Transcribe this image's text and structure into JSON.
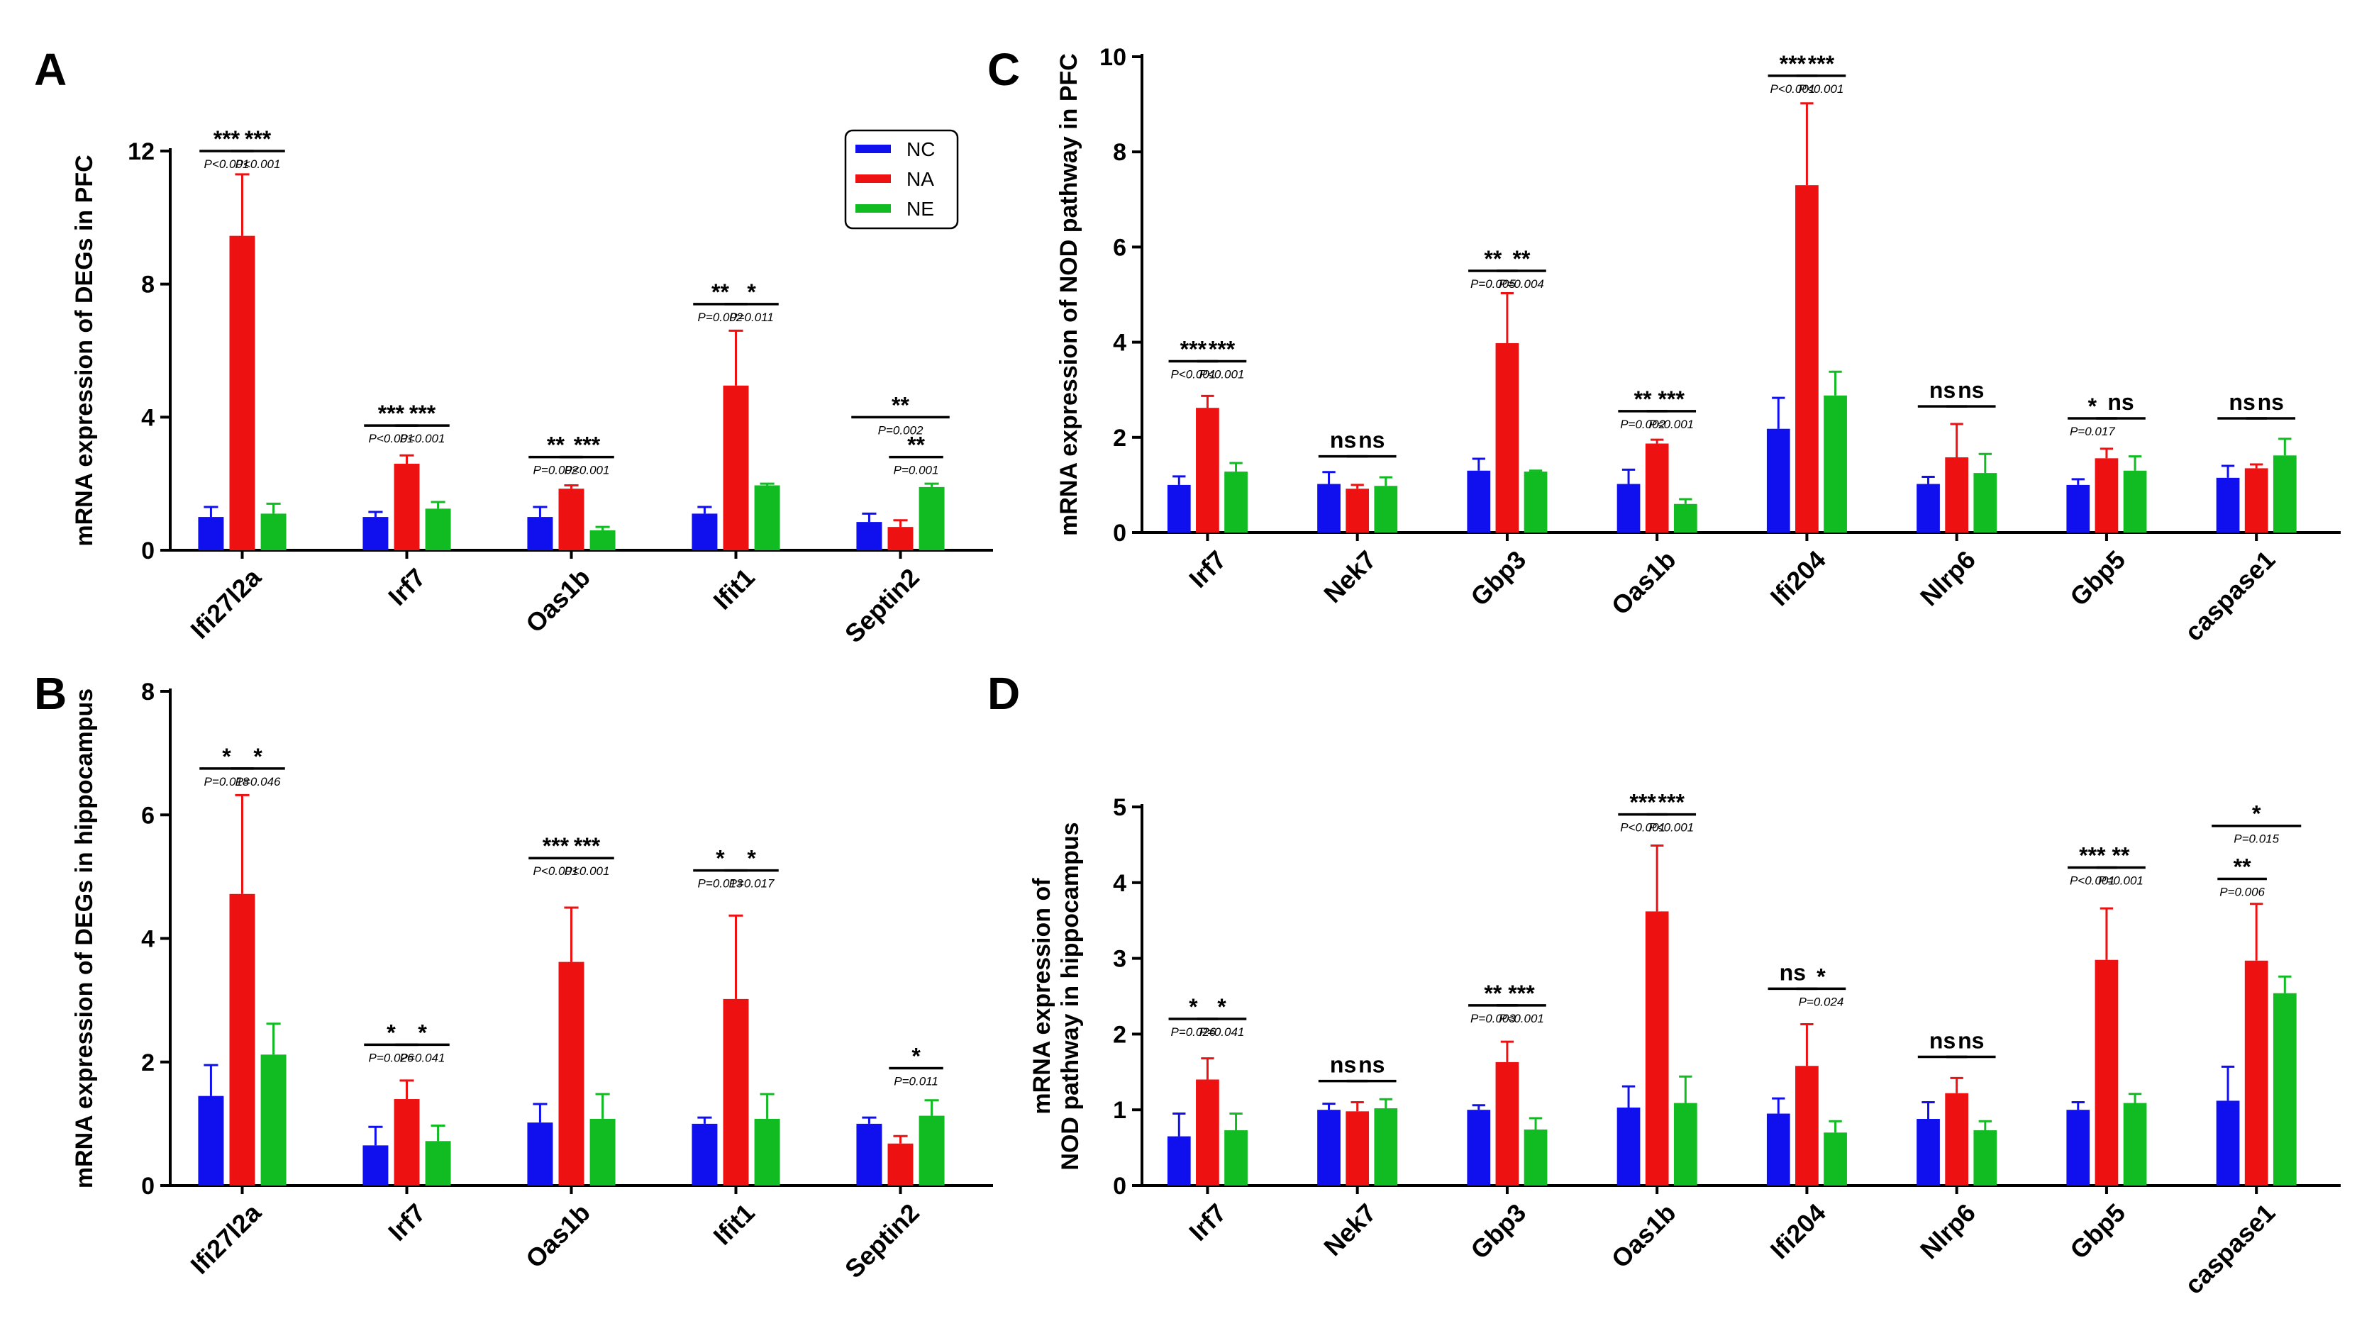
{
  "colors": {
    "NC": "#1010ee",
    "NA": "#ee1111",
    "NE": "#11bb22"
  },
  "chart_data": [
    {
      "id": "A",
      "type": "bar",
      "panel_label": "A",
      "ylabel": "mRNA expression of DEGs in PFC",
      "ylim": [
        0,
        12
      ],
      "yticks": [
        "0",
        "4",
        "8",
        "12"
      ],
      "categories": [
        "Ifi27l2a",
        "Irf7",
        "Oas1b",
        "Ifit1",
        "Septin2"
      ],
      "legend": {
        "position": "top-right",
        "entries": [
          "NC",
          "NA",
          "NE"
        ]
      },
      "series": [
        {
          "name": "NC",
          "values": [
            1.0,
            1.0,
            1.0,
            1.1,
            0.85
          ],
          "errors": [
            0.3,
            0.15,
            0.3,
            0.2,
            0.25
          ]
        },
        {
          "name": "NA",
          "values": [
            9.45,
            2.6,
            1.85,
            4.95,
            0.7
          ],
          "errors": [
            1.85,
            0.25,
            0.1,
            1.65,
            0.2
          ]
        },
        {
          "name": "NE",
          "values": [
            1.1,
            1.25,
            0.6,
            1.95,
            1.9
          ],
          "errors": [
            0.3,
            0.2,
            0.1,
            0.05,
            0.1
          ]
        }
      ],
      "comparisons": [
        {
          "cat": 0,
          "pair": "NC-NA",
          "stars": "***",
          "p": "P<0.001",
          "y": 12.0
        },
        {
          "cat": 0,
          "pair": "NA-NE",
          "stars": "***",
          "p": "P<0.001",
          "y": 12.0
        },
        {
          "cat": 1,
          "pair": "NC-NA",
          "stars": "***",
          "p": "P<0.001",
          "y": 3.75
        },
        {
          "cat": 1,
          "pair": "NA-NE",
          "stars": "***",
          "p": "P<0.001",
          "y": 3.75
        },
        {
          "cat": 2,
          "pair": "NC-NA",
          "stars": "**",
          "p": "P=0.002",
          "y": 2.8
        },
        {
          "cat": 2,
          "pair": "NA-NE",
          "stars": "***",
          "p": "P<0.001",
          "y": 2.8
        },
        {
          "cat": 3,
          "pair": "NC-NA",
          "stars": "**",
          "p": "P=0.002",
          "y": 7.4
        },
        {
          "cat": 3,
          "pair": "NA-NE",
          "stars": "*",
          "p": "P=0.011",
          "y": 7.4
        },
        {
          "cat": 4,
          "pair": "NC-NE",
          "stars": "**",
          "p": "P=0.002",
          "y": 4.0
        },
        {
          "cat": 4,
          "pair": "NA-NE",
          "stars": "**",
          "p": "P=0.001",
          "y": 2.8
        }
      ]
    },
    {
      "id": "B",
      "type": "bar",
      "panel_label": "B",
      "ylabel": "mRNA expression of DEGs in hippocampus",
      "ylim": [
        0,
        8
      ],
      "yticks": [
        "0",
        "2",
        "4",
        "6",
        "8"
      ],
      "categories": [
        "Ifi27l2a",
        "Irf7",
        "Oas1b",
        "Ifit1",
        "Septin2"
      ],
      "series": [
        {
          "name": "NC",
          "values": [
            1.45,
            0.65,
            1.02,
            1.0,
            1.0
          ],
          "errors": [
            0.5,
            0.3,
            0.3,
            0.1,
            0.1
          ]
        },
        {
          "name": "NA",
          "values": [
            4.72,
            1.4,
            3.62,
            3.02,
            0.68
          ],
          "errors": [
            1.6,
            0.3,
            0.88,
            1.35,
            0.12
          ]
        },
        {
          "name": "NE",
          "values": [
            2.12,
            0.72,
            1.08,
            1.08,
            1.13
          ],
          "errors": [
            0.5,
            0.25,
            0.4,
            0.4,
            0.25
          ]
        }
      ],
      "comparisons": [
        {
          "cat": 0,
          "pair": "NC-NA",
          "stars": "*",
          "p": "P=0.018",
          "y": 6.75
        },
        {
          "cat": 0,
          "pair": "NA-NE",
          "stars": "*",
          "p": "P=0.046",
          "y": 6.75
        },
        {
          "cat": 1,
          "pair": "NC-NA",
          "stars": "*",
          "p": "P=0.026",
          "y": 2.28
        },
        {
          "cat": 1,
          "pair": "NA-NE",
          "stars": "*",
          "p": "P=0.041",
          "y": 2.28
        },
        {
          "cat": 2,
          "pair": "NC-NA",
          "stars": "***",
          "p": "P<0.001",
          "y": 5.3
        },
        {
          "cat": 2,
          "pair": "NA-NE",
          "stars": "***",
          "p": "P<0.001",
          "y": 5.3
        },
        {
          "cat": 3,
          "pair": "NC-NA",
          "stars": "*",
          "p": "P=0.013",
          "y": 5.1
        },
        {
          "cat": 3,
          "pair": "NA-NE",
          "stars": "*",
          "p": "P=0.017",
          "y": 5.1
        },
        {
          "cat": 4,
          "pair": "NA-NE",
          "stars": "*",
          "p": "P=0.011",
          "y": 1.9
        }
      ]
    },
    {
      "id": "C",
      "type": "bar",
      "panel_label": "C",
      "ylabel": "mRNA expression of NOD pathway in PFC",
      "ylim": [
        0,
        10
      ],
      "yticks": [
        "0",
        "2",
        "4",
        "6",
        "8",
        "10"
      ],
      "categories": [
        "Irf7",
        "Nek7",
        "Gbp3",
        "Oas1b",
        "Ifi204",
        "Nlrp6",
        "Gbp5",
        "caspase1"
      ],
      "series": [
        {
          "name": "NC",
          "values": [
            1.0,
            1.02,
            1.3,
            1.02,
            2.18,
            1.02,
            1.0,
            1.15
          ],
          "errors": [
            0.18,
            0.25,
            0.25,
            0.3,
            0.65,
            0.15,
            0.12,
            0.25
          ]
        },
        {
          "name": "NA",
          "values": [
            2.62,
            0.92,
            3.98,
            1.87,
            7.3,
            1.58,
            1.56,
            1.35
          ],
          "errors": [
            0.25,
            0.08,
            1.05,
            0.08,
            1.72,
            0.7,
            0.2,
            0.08
          ]
        },
        {
          "name": "NE",
          "values": [
            1.28,
            0.98,
            1.28,
            0.6,
            2.88,
            1.25,
            1.3,
            1.62
          ],
          "errors": [
            0.18,
            0.18,
            0.02,
            0.1,
            0.5,
            0.4,
            0.3,
            0.35
          ]
        }
      ],
      "comparisons": [
        {
          "cat": 0,
          "pair": "NC-NA",
          "stars": "***",
          "p": "P<0.001",
          "y": 3.6
        },
        {
          "cat": 0,
          "pair": "NA-NE",
          "stars": "***",
          "p": "P<0.001",
          "y": 3.6
        },
        {
          "cat": 1,
          "pair": "NC-NA",
          "stars": "ns",
          "p": "",
          "y": 1.6
        },
        {
          "cat": 1,
          "pair": "NA-NE",
          "stars": "ns",
          "p": "",
          "y": 1.6
        },
        {
          "cat": 2,
          "pair": "NC-NA",
          "stars": "**",
          "p": "P=0.005",
          "y": 5.5
        },
        {
          "cat": 2,
          "pair": "NA-NE",
          "stars": "**",
          "p": "P=0.004",
          "y": 5.5
        },
        {
          "cat": 3,
          "pair": "NC-NA",
          "stars": "**",
          "p": "P=0.002",
          "y": 2.55
        },
        {
          "cat": 3,
          "pair": "NA-NE",
          "stars": "***",
          "p": "P<0.001",
          "y": 2.55
        },
        {
          "cat": 4,
          "pair": "NC-NA",
          "stars": "***",
          "p": "P<0.001",
          "y": 9.6
        },
        {
          "cat": 4,
          "pair": "NA-NE",
          "stars": "***",
          "p": "P<0.001",
          "y": 9.6
        },
        {
          "cat": 5,
          "pair": "NC-NA",
          "stars": "ns",
          "p": "",
          "y": 2.65
        },
        {
          "cat": 5,
          "pair": "NA-NE",
          "stars": "ns",
          "p": "",
          "y": 2.65
        },
        {
          "cat": 6,
          "pair": "NC-NA",
          "stars": "*",
          "p": "P=0.017",
          "y": 2.4
        },
        {
          "cat": 6,
          "pair": "NA-NE",
          "stars": "ns",
          "p": "",
          "y": 2.4
        },
        {
          "cat": 7,
          "pair": "NC-NA",
          "stars": "ns",
          "p": "",
          "y": 2.4
        },
        {
          "cat": 7,
          "pair": "NA-NE",
          "stars": "ns",
          "p": "",
          "y": 2.4
        }
      ]
    },
    {
      "id": "D",
      "type": "bar",
      "panel_label": "D",
      "ylabel_lines": [
        "mRNA expression of",
        "NOD pathway in hippocampus"
      ],
      "ylim": [
        0,
        5
      ],
      "yticks": [
        "0",
        "1",
        "2",
        "3",
        "4",
        "5"
      ],
      "categories": [
        "Irf7",
        "Nek7",
        "Gbp3",
        "Oas1b",
        "Ifi204",
        "Nlrp6",
        "Gbp5",
        "caspase1"
      ],
      "series": [
        {
          "name": "NC",
          "values": [
            0.65,
            1.0,
            1.0,
            1.03,
            0.95,
            0.88,
            1.0,
            1.12
          ],
          "errors": [
            0.3,
            0.08,
            0.06,
            0.28,
            0.2,
            0.22,
            0.1,
            0.45
          ]
        },
        {
          "name": "NA",
          "values": [
            1.4,
            0.98,
            1.63,
            3.62,
            1.58,
            1.22,
            2.98,
            2.97
          ],
          "errors": [
            0.28,
            0.12,
            0.27,
            0.87,
            0.55,
            0.2,
            0.68,
            0.75
          ]
        },
        {
          "name": "NE",
          "values": [
            0.73,
            1.02,
            0.74,
            1.09,
            0.7,
            0.73,
            1.09,
            2.54
          ],
          "errors": [
            0.22,
            0.12,
            0.15,
            0.35,
            0.15,
            0.12,
            0.12,
            0.22
          ]
        }
      ],
      "comparisons": [
        {
          "cat": 0,
          "pair": "NC-NA",
          "stars": "*",
          "p": "P=0.026",
          "y": 2.2
        },
        {
          "cat": 0,
          "pair": "NA-NE",
          "stars": "*",
          "p": "P=0.041",
          "y": 2.2
        },
        {
          "cat": 1,
          "pair": "NC-NA",
          "stars": "ns",
          "p": "",
          "y": 1.38
        },
        {
          "cat": 1,
          "pair": "NA-NE",
          "stars": "ns",
          "p": "",
          "y": 1.38
        },
        {
          "cat": 2,
          "pair": "NC-NA",
          "stars": "**",
          "p": "P=0.003",
          "y": 2.38
        },
        {
          "cat": 2,
          "pair": "NA-NE",
          "stars": "***",
          "p": "P<0.001",
          "y": 2.38
        },
        {
          "cat": 3,
          "pair": "NC-NA",
          "stars": "***",
          "p": "P<0.001",
          "y": 4.9
        },
        {
          "cat": 3,
          "pair": "NA-NE",
          "stars": "***",
          "p": "P<0.001",
          "y": 4.9
        },
        {
          "cat": 4,
          "pair": "NC-NA",
          "stars": "ns",
          "p": "",
          "y": 2.6
        },
        {
          "cat": 4,
          "pair": "NA-NE",
          "stars": "*",
          "p": "P=0.024",
          "y": 2.6
        },
        {
          "cat": 5,
          "pair": "NC-NA",
          "stars": "ns",
          "p": "",
          "y": 1.7
        },
        {
          "cat": 5,
          "pair": "NA-NE",
          "stars": "ns",
          "p": "",
          "y": 1.7
        },
        {
          "cat": 6,
          "pair": "NC-NA",
          "stars": "***",
          "p": "P<0.001",
          "y": 4.2
        },
        {
          "cat": 6,
          "pair": "NA-NE",
          "stars": "**",
          "p": "P=0.001",
          "y": 4.2
        },
        {
          "cat": 7,
          "pair": "NC-NA",
          "stars": "**",
          "p": "P=0.006",
          "y": 4.05
        },
        {
          "cat": 7,
          "pair": "NC-NE",
          "stars": "*",
          "p": "P=0.015",
          "y": 4.75
        }
      ]
    }
  ]
}
